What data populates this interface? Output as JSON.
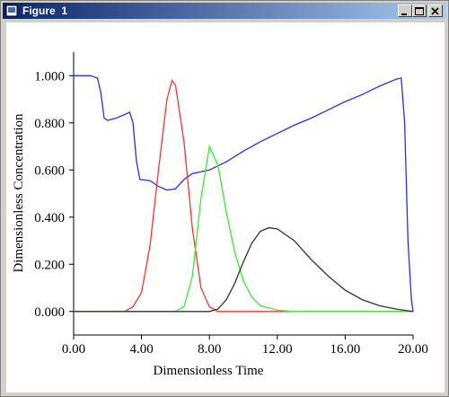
{
  "window": {
    "title": "Figure  1"
  },
  "chart_data": {
    "type": "line",
    "x_label": "Dimensionless Time",
    "y_label": "Dimensionless Concentration",
    "xlim": [
      0,
      20
    ],
    "ylim": [
      -0.1,
      1.1
    ],
    "xticks": [
      {
        "value": 0,
        "label": "0.00"
      },
      {
        "value": 4,
        "label": "4.00"
      },
      {
        "value": 8,
        "label": "8.00"
      },
      {
        "value": 12,
        "label": "12.00"
      },
      {
        "value": 16,
        "label": "16.00"
      },
      {
        "value": 20,
        "label": "20.00"
      }
    ],
    "yticks": [
      {
        "value": 0,
        "label": "0.000"
      },
      {
        "value": 0.2,
        "label": "0.200"
      },
      {
        "value": 0.4,
        "label": "0.400"
      },
      {
        "value": 0.6,
        "label": "0.600"
      },
      {
        "value": 0.8,
        "label": "0.800"
      },
      {
        "value": 1,
        "label": "1.000"
      }
    ],
    "series": [
      {
        "color": "#2b2bff",
        "x": [
          0,
          1,
          1.4,
          1.6,
          1.8,
          2,
          2.5,
          3,
          3.3,
          3.5,
          3.7,
          3.9,
          4.5,
          5,
          5.5,
          6,
          6.5,
          7,
          8,
          9,
          10,
          11,
          12,
          13,
          14,
          15,
          16,
          17,
          18,
          19,
          19.3,
          19.5,
          19.7,
          19.9,
          20
        ],
        "values": [
          1.0,
          1.0,
          0.99,
          0.93,
          0.82,
          0.81,
          0.82,
          0.835,
          0.845,
          0.8,
          0.64,
          0.56,
          0.555,
          0.53,
          0.515,
          0.52,
          0.56,
          0.585,
          0.6,
          0.635,
          0.68,
          0.72,
          0.755,
          0.79,
          0.82,
          0.855,
          0.89,
          0.92,
          0.955,
          0.985,
          0.99,
          0.8,
          0.3,
          0.05,
          0.0
        ]
      },
      {
        "color": "#ff3030",
        "x": [
          0,
          3,
          3.5,
          4,
          4.5,
          5,
          5.5,
          5.8,
          6,
          6.5,
          7,
          7.5,
          8,
          8.5,
          20
        ],
        "values": [
          0,
          0,
          0.02,
          0.08,
          0.28,
          0.6,
          0.9,
          0.98,
          0.96,
          0.72,
          0.35,
          0.1,
          0.02,
          0,
          0
        ]
      },
      {
        "color": "#33ee33",
        "x": [
          0,
          6,
          6.5,
          7,
          7.5,
          8,
          8.5,
          9,
          9.5,
          10,
          10.5,
          11,
          12,
          13,
          20
        ],
        "values": [
          0,
          0,
          0.02,
          0.15,
          0.48,
          0.7,
          0.62,
          0.42,
          0.25,
          0.13,
          0.06,
          0.025,
          0.005,
          0,
          0
        ]
      },
      {
        "color": "#333333",
        "x": [
          0,
          8,
          8.5,
          9,
          9.5,
          10,
          10.5,
          11,
          11.5,
          12,
          13,
          14,
          15,
          16,
          17,
          18,
          19,
          20
        ],
        "values": [
          0,
          0,
          0.01,
          0.05,
          0.12,
          0.21,
          0.29,
          0.34,
          0.355,
          0.35,
          0.3,
          0.22,
          0.15,
          0.09,
          0.05,
          0.025,
          0.01,
          0
        ]
      }
    ]
  }
}
